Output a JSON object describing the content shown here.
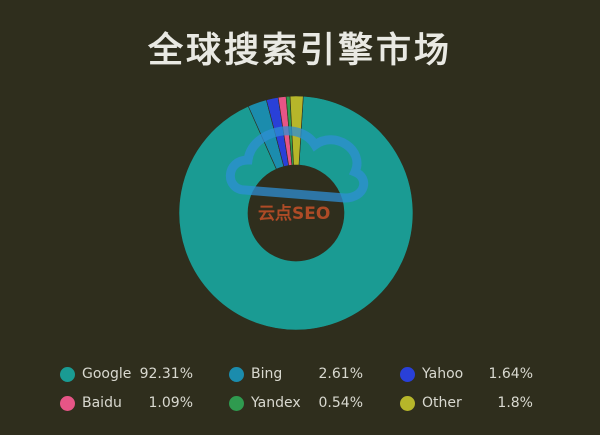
{
  "title": "全球搜索引擎市场",
  "watermark": {
    "text_cn": "云点",
    "text_en": "SEO"
  },
  "colors": {
    "background": "#2f2e1d",
    "Google": "#1a9b93",
    "Bing": "#1b8cad",
    "Yahoo": "#2940d8",
    "Baidu": "#e65586",
    "Yandex": "#2f9a4f",
    "Other": "#b6b62a",
    "watermark_blue": "#2e8fd4",
    "watermark_orange": "#d9552a"
  },
  "chart_data": {
    "type": "pie",
    "variant": "donut",
    "title": "全球搜索引擎市场",
    "legend_position": "bottom",
    "categories": [
      "Google",
      "Bing",
      "Yahoo",
      "Baidu",
      "Yandex",
      "Other"
    ],
    "values": [
      92.31,
      2.61,
      1.64,
      1.09,
      0.54,
      1.8
    ],
    "value_labels": [
      "92.31%",
      "2.61%",
      "1.64%",
      "1.09%",
      "0.54%",
      "1.8%"
    ]
  }
}
